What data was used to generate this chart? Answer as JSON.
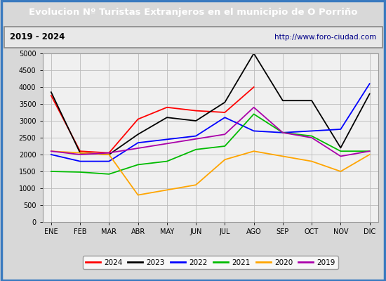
{
  "title": "Evolucion Nº Turistas Extranjeros en el municipio de O Porriño",
  "subtitle_left": "2019 - 2024",
  "subtitle_right": "http://www.foro-ciudad.com",
  "months": [
    "ENE",
    "FEB",
    "MAR",
    "ABR",
    "MAY",
    "JUN",
    "JUL",
    "AGO",
    "SEP",
    "OCT",
    "NOV",
    "DIC"
  ],
  "series": {
    "2024": {
      "color": "#ff0000",
      "data": [
        3750,
        2100,
        2050,
        3050,
        3400,
        3300,
        3250,
        4000,
        null,
        null,
        null,
        null
      ]
    },
    "2023": {
      "color": "#000000",
      "data": [
        3850,
        2050,
        2000,
        2600,
        3100,
        3000,
        3550,
        5000,
        3600,
        3600,
        2200,
        3800
      ]
    },
    "2022": {
      "color": "#0000ff",
      "data": [
        2000,
        1800,
        1800,
        2350,
        2450,
        2550,
        3100,
        2700,
        2650,
        2700,
        2750,
        4100
      ]
    },
    "2021": {
      "color": "#00bb00",
      "data": [
        1500,
        1480,
        1420,
        1700,
        1800,
        2150,
        2250,
        3200,
        2650,
        2550,
        2100,
        2100
      ]
    },
    "2020": {
      "color": "#ffa500",
      "data": [
        2100,
        2050,
        2000,
        800,
        950,
        1100,
        1850,
        2100,
        1950,
        1800,
        1500,
        2000
      ]
    },
    "2019": {
      "color": "#aa00aa",
      "data": [
        2100,
        2000,
        2050,
        null,
        null,
        null,
        2600,
        3400,
        2650,
        2500,
        1950,
        2100
      ]
    }
  },
  "ylim": [
    0,
    5000
  ],
  "yticks": [
    0,
    500,
    1000,
    1500,
    2000,
    2500,
    3000,
    3500,
    4000,
    4500,
    5000
  ],
  "title_bg": "#3a7abf",
  "title_fg": "#ffffff",
  "plot_bg": "#d8d8d8",
  "inner_bg": "#f0f0f0",
  "grid_color": "#bbbbbb",
  "border_color": "#3a7abf",
  "subtitle_bg": "#e8e8e8"
}
